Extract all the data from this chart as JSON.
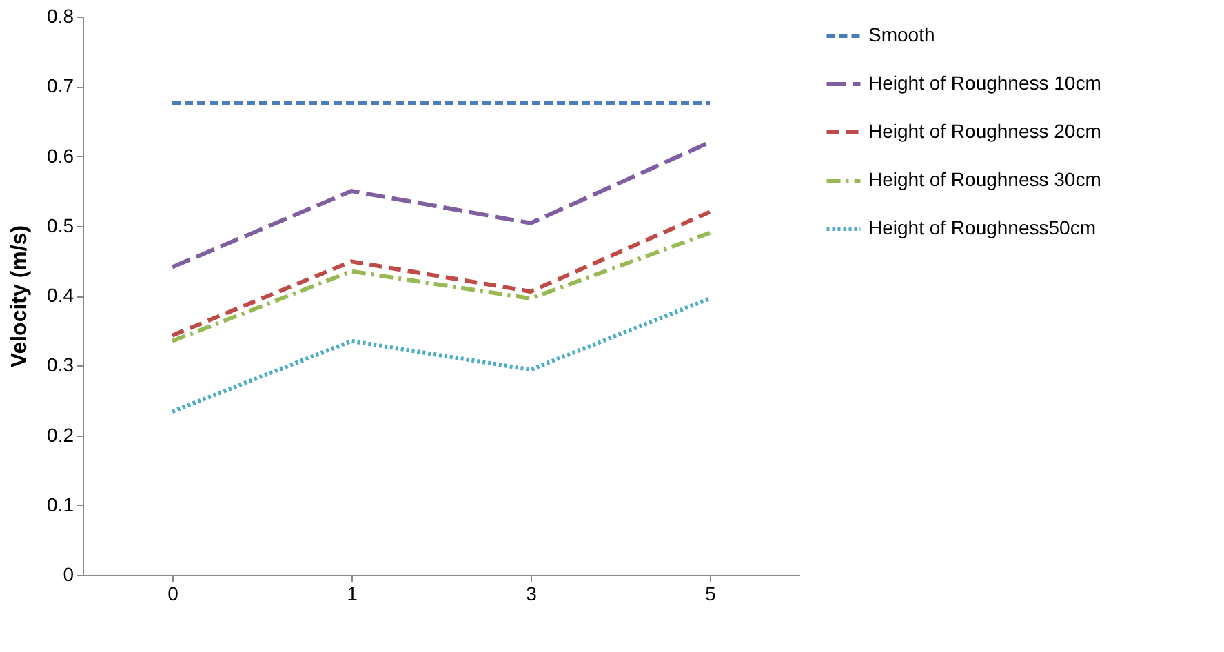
{
  "chart_data": {
    "type": "line",
    "ylabel": "Velocity (m/s)",
    "categories": [
      "0",
      "1",
      "3",
      "5"
    ],
    "ylim": [
      0,
      0.8
    ],
    "yticks": [
      0,
      0.1,
      0.2,
      0.3,
      0.4,
      0.5,
      0.6,
      0.7,
      0.8
    ],
    "grid": false,
    "legend": "right",
    "marker": "none",
    "series": [
      {
        "name": "Smooth",
        "color": "#4a7ebb",
        "line_style": "dashed",
        "values": [
          0.676,
          0.676,
          0.676,
          0.676
        ]
      },
      {
        "name": "Height of Roughness 10cm",
        "color": "#7f5fa0",
        "line_style": "dashed",
        "values": [
          0.441,
          0.55,
          0.504,
          0.62
        ]
      },
      {
        "name": "Height of Roughness 20cm",
        "color": "#be4b48",
        "line_style": "dashed",
        "values": [
          0.343,
          0.449,
          0.406,
          0.52
        ]
      },
      {
        "name": "Height of Roughness 30cm",
        "color": "#98b954",
        "line_style": "dashed",
        "values": [
          0.335,
          0.435,
          0.396,
          0.49
        ]
      },
      {
        "name": "Height of Roughness50cm",
        "color": "#4bacc6",
        "line_style": "dotted",
        "values": [
          0.234,
          0.335,
          0.294,
          0.396
        ]
      }
    ]
  }
}
